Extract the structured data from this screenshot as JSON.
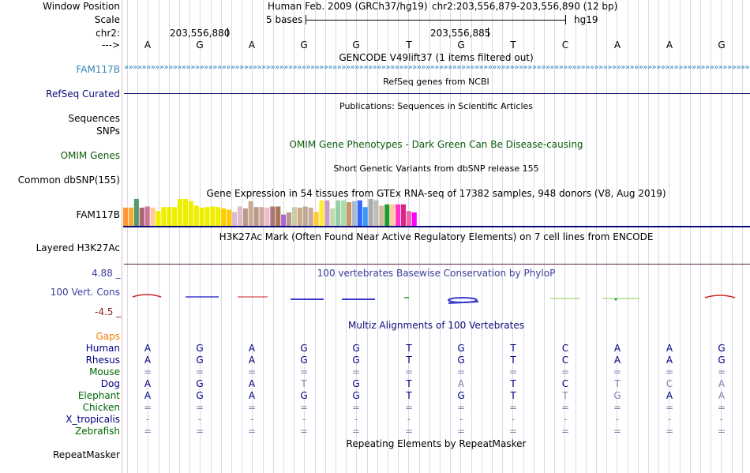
{
  "header": {
    "window_position_label": "Window Position",
    "scale_label": "Scale",
    "chr_label": "chr2:",
    "arrow_label": "--->",
    "assembly": "Human Feb. 2009 (GRCh37/hg19)",
    "position": "chr2:203,556,879-203,556,890 (12 bp)",
    "scale_text": "5 bases",
    "db_text": "hg19",
    "coord1": "203,556,880",
    "coord2": "203,556,885"
  },
  "bases": [
    "A",
    "G",
    "A",
    "G",
    "G",
    "T",
    "G",
    "T",
    "C",
    "A",
    "A",
    "G"
  ],
  "tracks": {
    "gencode": {
      "title": "GENCODE V49lift37 (1 items filtered out)",
      "label": "FAM117B"
    },
    "refseq_title": "RefSeq genes from NCBI",
    "refseq_label": "RefSeq Curated",
    "publications_title": "Publications: Sequences in Scientific Articles",
    "sequences_label": "Sequences",
    "snps_label": "SNPs",
    "omim_title": "OMIM Gene Phenotypes - Dark Green Can Be Disease-causing",
    "omim_label": "OMIM Genes",
    "dbsnp_title": "Short Genetic Variants from dbSNP release 155",
    "dbsnp_label": "Common dbSNP(155)",
    "gtex_title": "Gene Expression in 54 tissues from GTEx RNA-seq of 17382 samples, 948 donors (V8, Aug 2019)",
    "gtex_label": "FAM117B",
    "h3k27ac_title": "H3K27Ac Mark (Often Found Near Active Regulatory Elements) on 7 cell lines from ENCODE",
    "h3k27ac_label": "Layered H3K27Ac",
    "cons_title": "100 vertebrates Basewise Conservation by PhyloP",
    "cons_label": "100 Vert. Cons",
    "cons_max": "4.88 _",
    "cons_min": "-4.5 _",
    "multiz_title": "Multiz Alignments of 100 Vertebrates",
    "gaps_label": "Gaps",
    "repeat_title": "Repeating Elements by RepeatMasker",
    "repeat_label": "RepeatMasker"
  },
  "alignment": [
    {
      "species": "Human",
      "color": "#000080",
      "bases": [
        "A",
        "G",
        "A",
        "G",
        "G",
        "T",
        "G",
        "T",
        "C",
        "A",
        "A",
        "G"
      ]
    },
    {
      "species": "Rhesus",
      "color": "#000080",
      "bases": [
        "A",
        "G",
        "A",
        "G",
        "G",
        "T",
        "G",
        "T",
        "C",
        "A",
        "A",
        "G"
      ]
    },
    {
      "species": "Mouse",
      "color": "#006600",
      "bases": [
        "=",
        "=",
        "=",
        "=",
        "=",
        "=",
        "=",
        "=",
        "=",
        "=",
        "=",
        "="
      ]
    },
    {
      "species": "Dog",
      "color": "#000080",
      "bases": [
        "A",
        "G",
        "A",
        "T",
        "G",
        "T",
        "A",
        "T",
        "C",
        "T",
        "C",
        "A"
      ]
    },
    {
      "species": "Elephant",
      "color": "#006600",
      "bases": [
        "A",
        "G",
        "A",
        "G",
        "G",
        "T",
        "G",
        "T",
        "T",
        "G",
        "A",
        "A"
      ]
    },
    {
      "species": "Chicken",
      "color": "#006600",
      "bases": [
        "=",
        "=",
        "=",
        "=",
        "=",
        "=",
        "=",
        "=",
        "=",
        "=",
        "=",
        "="
      ]
    },
    {
      "species": "X_tropicalis",
      "color": "#000080",
      "bases": [
        "-",
        "-",
        "-",
        "-",
        "-",
        "-",
        "-",
        "-",
        "-",
        "-",
        "-",
        "-"
      ]
    },
    {
      "species": "Zebrafish",
      "color": "#006600",
      "bases": [
        "=",
        "=",
        "=",
        "=",
        "=",
        "=",
        "=",
        "=",
        "=",
        "=",
        "=",
        "="
      ]
    }
  ],
  "chart_data": {
    "type": "bar",
    "title": "Gene Expression in 54 tissues from GTEx RNA-seq of 17382 samples, 948 donors (V8, Aug 2019)",
    "values": [
      0.68,
      0.68,
      1.0,
      0.68,
      0.72,
      0.68,
      0.55,
      0.7,
      0.7,
      0.7,
      1.0,
      1.0,
      0.92,
      0.75,
      0.68,
      0.7,
      0.72,
      0.7,
      0.65,
      0.6,
      0.52,
      0.72,
      0.65,
      0.92,
      0.7,
      0.7,
      0.68,
      0.72,
      0.72,
      0.42,
      0.5,
      0.7,
      0.68,
      0.72,
      0.68,
      0.52,
      0.95,
      0.95,
      0.65,
      0.95,
      0.95,
      0.88,
      0.92,
      0.95,
      0.7,
      1.0,
      0.95,
      0.75,
      0.8,
      0.8,
      0.8,
      0.8,
      0.55,
      0.5
    ],
    "colors": [
      "#ff9933",
      "#ffaa33",
      "#559966",
      "#aa6677",
      "#cc7799",
      "#ffcc99",
      "#eeee00",
      "#eeee00",
      "#eeee00",
      "#eeee00",
      "#eeee00",
      "#eeee00",
      "#eeee00",
      "#eeee00",
      "#eeee00",
      "#eeee00",
      "#eeee00",
      "#eeee00",
      "#ffcc00",
      "#ffcc00",
      "#ddbbcc",
      "#ddbbcc",
      "#bb9988",
      "#ccaa99",
      "#bb9988",
      "#ccaa99",
      "#eebbcc",
      "#aa7777",
      "#aa7755",
      "#aa66cc",
      "#bb9988",
      "#ccccaa",
      "#ccaa88",
      "#bbaa99",
      "#ccaa99",
      "#ffcc33",
      "#ffee33",
      "#cc99cc",
      "#bbddaa",
      "#99ccaa",
      "#aaddaa",
      "#cc9966",
      "#aabbcc",
      "#3366ff",
      "#3399ff",
      "#aaaaaa",
      "#bbbbbb",
      "#ccbb99",
      "#229933",
      "#ffcc99",
      "#ff33cc",
      "#dd2288",
      "#ee66aa",
      "#ff00ff"
    ],
    "ylim": [
      0,
      1
    ]
  }
}
